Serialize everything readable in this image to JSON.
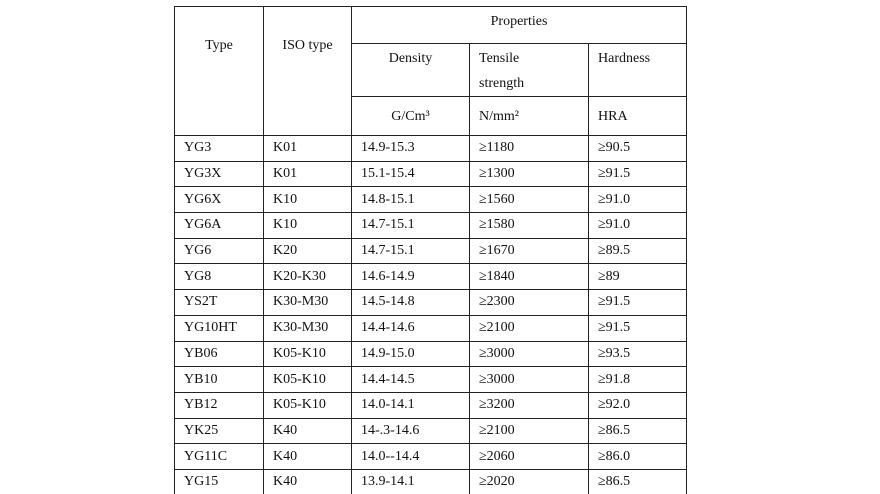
{
  "header": {
    "type": "Type",
    "iso_type": "ISO type",
    "properties": "Properties",
    "columns": [
      {
        "name": "Density",
        "unit": "G/Cm³"
      },
      {
        "name": "Tensile strength",
        "unit": "N/mm²"
      },
      {
        "name": "Hardness",
        "unit": "HRA"
      }
    ]
  },
  "table": {
    "rows": [
      [
        "YG3",
        "K01",
        "14.9-15.3",
        "≥1180",
        "≥90.5"
      ],
      [
        "YG3X",
        "K01",
        "15.1-15.4",
        "≥1300",
        "≥91.5"
      ],
      [
        "YG6X",
        "K10",
        "14.8-15.1",
        "≥1560",
        "≥91.0"
      ],
      [
        "YG6A",
        "K10",
        "14.7-15.1",
        "≥1580",
        "≥91.0"
      ],
      [
        "YG6",
        "K20",
        "14.7-15.1",
        "≥1670",
        "≥89.5"
      ],
      [
        "YG8",
        "K20-K30",
        "14.6-14.9",
        "≥1840",
        "≥89"
      ],
      [
        "YS2T",
        "K30-M30",
        "14.5-14.8",
        "≥2300",
        "≥91.5"
      ],
      [
        "YG10HT",
        "K30-M30",
        "14.4-14.6",
        "≥2100",
        "≥91.5"
      ],
      [
        "YB06",
        "K05-K10",
        "14.9-15.0",
        "≥3000",
        "≥93.5"
      ],
      [
        "YB10",
        "K05-K10",
        "14.4-14.5",
        "≥3000",
        "≥91.8"
      ],
      [
        "YB12",
        "K05-K10",
        "14.0-14.1",
        "≥3200",
        "≥92.0"
      ],
      [
        "YK25",
        "K40",
        "14-.3-14.6",
        "≥2100",
        "≥86.5"
      ],
      [
        "YG11C",
        "K40",
        "14.0--14.4",
        "≥2060",
        "≥86.0"
      ],
      [
        "YG15",
        "K40",
        "13.9-14.1",
        "≥2020",
        "≥86.5"
      ]
    ]
  }
}
